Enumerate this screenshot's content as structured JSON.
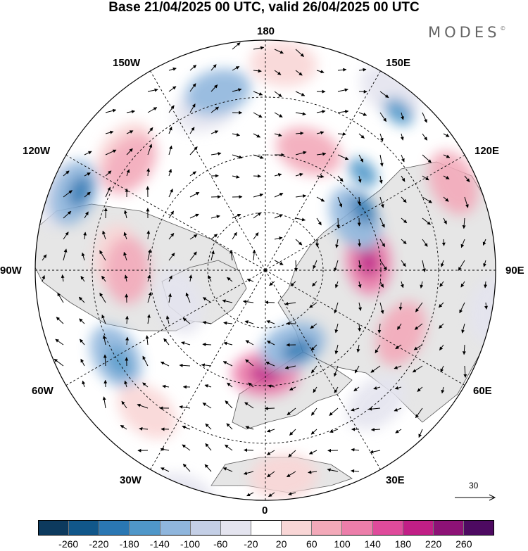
{
  "title": "Base 21/04/2025 00 UTC, valid 26/04/2025 00 UTC",
  "brand": "MODES",
  "brand_mark": "©",
  "longitude_labels": {
    "top": "180",
    "bottom": "0",
    "left": "90W",
    "right": "90E",
    "upper_left_1": "150W",
    "upper_left_2": "120W",
    "lower_left_1": "60W",
    "lower_left_2": "30W",
    "upper_right_1": "150E",
    "upper_right_2": "120E",
    "lower_right_1": "60E",
    "lower_right_2": "30E"
  },
  "reference_vector": {
    "label": "30"
  },
  "colorbar": {
    "ticks": [
      "-260",
      "-220",
      "-180",
      "-140",
      "-100",
      "-60",
      "-20",
      "20",
      "60",
      "100",
      "140",
      "180",
      "220",
      "260"
    ],
    "colors": [
      "#0d3a5e",
      "#11578a",
      "#2a77b3",
      "#4f97c9",
      "#8fb6dd",
      "#c4cfe6",
      "#e4e4ef",
      "#ffffff",
      "#f9d6d6",
      "#f3a9b9",
      "#ec7eaa",
      "#df4b9b",
      "#c11f86",
      "#8d1276",
      "#4d0a61"
    ]
  },
  "map_style": {
    "ocean_color": "#ffffff",
    "land_color": "#e6e6e6",
    "coast_color": "#555555",
    "grid_color": "#000000"
  },
  "anomaly_blobs": [
    {
      "lon": -160,
      "colat": 30,
      "rx": 1,
      "ry": 1,
      "level": "neg1"
    },
    {
      "lon": -165,
      "colat": 32,
      "level": "neg3"
    },
    {
      "lon": -130,
      "colat": 32,
      "level": "pos1"
    },
    {
      "lon": -128,
      "colat": 30,
      "level": "pos2"
    },
    {
      "lon": -110,
      "colat": 38,
      "level": "neg1"
    },
    {
      "lon": -112,
      "colat": 36,
      "level": "neg3"
    },
    {
      "lon": -113,
      "colat": 35,
      "level": "neg5"
    },
    {
      "lon": -95,
      "colat": 26,
      "level": "pos1"
    },
    {
      "lon": -90,
      "colat": 24,
      "level": "pos2"
    },
    {
      "lon": -70,
      "colat": 16,
      "level": "neg1"
    },
    {
      "lon": -60,
      "colat": 30,
      "level": "neg3"
    },
    {
      "lon": -58,
      "colat": 30,
      "level": "neg4"
    },
    {
      "lon": -40,
      "colat": 32,
      "level": "pos1"
    },
    {
      "lon": -20,
      "colat": 42,
      "level": "neg1"
    },
    {
      "lon": 0,
      "colat": 18,
      "level": "pos3"
    },
    {
      "lon": 0,
      "colat": 18,
      "level": "pos5"
    },
    {
      "lon": 5,
      "colat": 36,
      "level": "pos1"
    },
    {
      "lon": 20,
      "colat": 14,
      "level": "neg3"
    },
    {
      "lon": 22,
      "colat": 15,
      "level": "neg5"
    },
    {
      "lon": 40,
      "colat": 30,
      "level": "neg1"
    },
    {
      "lon": 65,
      "colat": 26,
      "level": "pos2"
    },
    {
      "lon": 95,
      "colat": 18,
      "level": "pos3"
    },
    {
      "lon": 95,
      "colat": 18,
      "level": "pos5"
    },
    {
      "lon": 120,
      "colat": 18,
      "level": "neg3"
    },
    {
      "lon": 122,
      "colat": 20,
      "level": "neg5"
    },
    {
      "lon": 135,
      "colat": 24,
      "level": "neg4"
    },
    {
      "lon": 160,
      "colat": 22,
      "level": "pos2"
    },
    {
      "lon": 145,
      "colat": 38,
      "level": "neg1"
    },
    {
      "lon": 140,
      "colat": 36,
      "level": "neg4"
    },
    {
      "lon": 175,
      "colat": 36,
      "level": "pos1"
    },
    {
      "lon": 115,
      "colat": 36,
      "level": "pos2"
    },
    {
      "lon": 80,
      "colat": 40,
      "level": "neg1"
    }
  ]
}
